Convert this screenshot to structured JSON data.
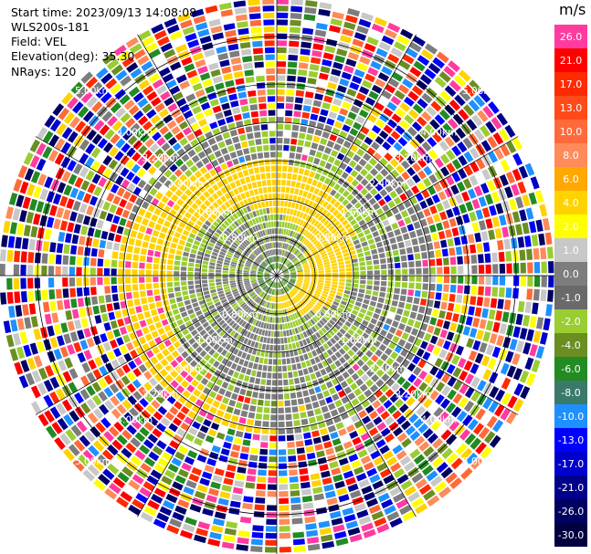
{
  "header": {
    "start_time": "Start time: 2023/09/13 14:08:08",
    "site": "WLS200s-181",
    "field": "Field: VEL",
    "elevation": "Elevation(deg): 35.30",
    "nrays": "NRays: 120"
  },
  "colorbar": {
    "unit": "m/s",
    "entries": [
      {
        "label": "26.0",
        "color": "#ff3ba0"
      },
      {
        "label": "21.0",
        "color": "#ff0000"
      },
      {
        "label": "17.0",
        "color": "#ff2a00"
      },
      {
        "label": "13.0",
        "color": "#ff4a1a"
      },
      {
        "label": "10.0",
        "color": "#ff6a3a"
      },
      {
        "label": "8.0",
        "color": "#ff8a5a"
      },
      {
        "label": "6.0",
        "color": "#ffa800"
      },
      {
        "label": "4.0",
        "color": "#ffd200"
      },
      {
        "label": "2.0",
        "color": "#ffff00"
      },
      {
        "label": "1.0",
        "color": "#c8c8c8"
      },
      {
        "label": "0.0",
        "color": "#7d7d7d"
      },
      {
        "label": "-1.0",
        "color": "#6a6a6a"
      },
      {
        "label": "-2.0",
        "color": "#9acd32"
      },
      {
        "label": "-4.0",
        "color": "#6b8e23"
      },
      {
        "label": "-6.0",
        "color": "#228b22"
      },
      {
        "label": "-8.0",
        "color": "#3a7a6a"
      },
      {
        "label": "-10.0",
        "color": "#1e90ff"
      },
      {
        "label": "-13.0",
        "color": "#0000ff"
      },
      {
        "label": "-17.0",
        "color": "#0000cd"
      },
      {
        "label": "-21.0",
        "color": "#00008b"
      },
      {
        "label": "-26.0",
        "color": "#000060"
      },
      {
        "label": "-30.0",
        "color": "#000040"
      }
    ]
  },
  "rings": {
    "labels": [
      "0.80km",
      "1.60km",
      "2.40km",
      "3.20km",
      "4.00km",
      "5.00km"
    ]
  }
}
